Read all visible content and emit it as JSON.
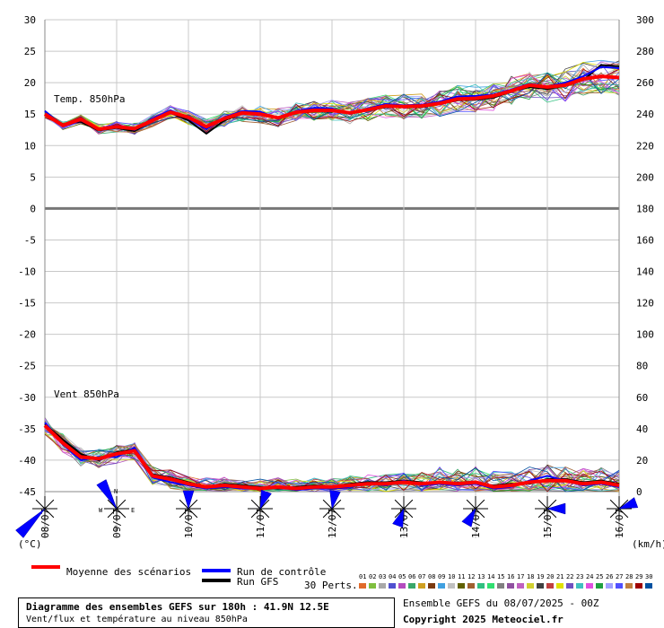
{
  "chart_data": {
    "type": "line",
    "title": "Diagramme des ensembles GEFS sur 180h : 41.9N 12.5E",
    "subtitle": "Vent/flux et température au niveau 850hPa",
    "temp_label": "Temp. 850hPa",
    "wind_label": "Vent 850hPa",
    "left_axis_unit": "(°C)",
    "right_axis_unit": "(km/h)",
    "left_ticks": [
      "30",
      "25",
      "20",
      "15",
      "10",
      "5",
      "0",
      "-5",
      "-10",
      "-15",
      "-20",
      "-25",
      "-30",
      "-35",
      "-40",
      "-45"
    ],
    "right_ticks": [
      "300",
      "280",
      "260",
      "240",
      "220",
      "200",
      "180",
      "160",
      "140",
      "120",
      "100",
      "80",
      "60",
      "40",
      "20",
      "0"
    ],
    "x_labels": [
      "08/07",
      "09/07",
      "10/07",
      "11/07",
      "12/07",
      "13/07",
      "14/07",
      "15/07",
      "16/07"
    ],
    "temp_range": [
      -45,
      30
    ],
    "x_range_h": [
      0,
      192
    ],
    "temp_mean": [
      [
        0,
        15
      ],
      [
        6,
        13.2
      ],
      [
        12,
        14.2
      ],
      [
        18,
        12.6
      ],
      [
        24,
        13
      ],
      [
        30,
        12.7
      ],
      [
        36,
        14
      ],
      [
        42,
        15.3
      ],
      [
        48,
        14.5
      ],
      [
        54,
        13
      ],
      [
        60,
        14.3
      ],
      [
        66,
        15.2
      ],
      [
        72,
        15
      ],
      [
        78,
        14.4
      ],
      [
        84,
        15.3
      ],
      [
        90,
        15.6
      ],
      [
        96,
        15.6
      ],
      [
        102,
        15.2
      ],
      [
        108,
        15.7
      ],
      [
        114,
        16.3
      ],
      [
        120,
        16.2
      ],
      [
        126,
        16.3
      ],
      [
        132,
        16.7
      ],
      [
        138,
        17.4
      ],
      [
        144,
        17.5
      ],
      [
        150,
        17.9
      ],
      [
        156,
        18.7
      ],
      [
        162,
        19.6
      ],
      [
        168,
        19.3
      ],
      [
        174,
        19.6
      ],
      [
        180,
        20.6
      ],
      [
        186,
        21
      ],
      [
        192,
        20.8
      ]
    ],
    "temp_control": [
      [
        0,
        15.5
      ],
      [
        6,
        13
      ],
      [
        12,
        14
      ],
      [
        18,
        12.7
      ],
      [
        24,
        13.2
      ],
      [
        30,
        12.5
      ],
      [
        36,
        14.3
      ],
      [
        42,
        15.6
      ],
      [
        48,
        14.3
      ],
      [
        54,
        12.6
      ],
      [
        60,
        14.5
      ],
      [
        66,
        15.5
      ],
      [
        72,
        15.4
      ],
      [
        78,
        14.2
      ],
      [
        84,
        15.5
      ],
      [
        90,
        16
      ],
      [
        96,
        15.9
      ],
      [
        102,
        15
      ],
      [
        108,
        15.9
      ],
      [
        114,
        16.6
      ],
      [
        120,
        16.4
      ],
      [
        126,
        16.5
      ],
      [
        132,
        17
      ],
      [
        138,
        17.8
      ],
      [
        144,
        17.9
      ],
      [
        150,
        18.1
      ],
      [
        156,
        18.9
      ],
      [
        162,
        19.8
      ],
      [
        168,
        19.4
      ],
      [
        174,
        20
      ],
      [
        180,
        21
      ],
      [
        186,
        22.5
      ],
      [
        192,
        22.3
      ]
    ],
    "temp_gfs": [
      [
        0,
        15
      ],
      [
        6,
        13.4
      ],
      [
        12,
        13.8
      ],
      [
        18,
        12.4
      ],
      [
        24,
        12.8
      ],
      [
        30,
        12.3
      ],
      [
        36,
        14.1
      ],
      [
        42,
        15.2
      ],
      [
        48,
        14
      ],
      [
        54,
        11.9
      ],
      [
        60,
        14
      ],
      [
        66,
        15.1
      ],
      [
        72,
        15.1
      ],
      [
        78,
        14.3
      ],
      [
        84,
        15.2
      ],
      [
        90,
        15.4
      ],
      [
        96,
        15.4
      ],
      [
        102,
        15.3
      ],
      [
        108,
        15.6
      ],
      [
        114,
        16.1
      ],
      [
        120,
        16.1
      ],
      [
        126,
        16.1
      ],
      [
        132,
        16.6
      ],
      [
        138,
        17.2
      ],
      [
        144,
        17.3
      ],
      [
        150,
        17.6
      ],
      [
        156,
        18.6
      ],
      [
        162,
        19.3
      ],
      [
        168,
        19
      ],
      [
        174,
        19.5
      ],
      [
        180,
        20.4
      ],
      [
        186,
        22.8
      ],
      [
        192,
        22.6
      ]
    ],
    "wind_mean_kmh": [
      [
        0,
        42
      ],
      [
        6,
        31
      ],
      [
        12,
        22
      ],
      [
        18,
        21
      ],
      [
        24,
        24
      ],
      [
        30,
        26
      ],
      [
        36,
        10
      ],
      [
        42,
        8
      ],
      [
        48,
        5
      ],
      [
        54,
        3
      ],
      [
        60,
        4
      ],
      [
        66,
        3
      ],
      [
        72,
        2
      ],
      [
        78,
        3
      ],
      [
        84,
        2
      ],
      [
        90,
        3
      ],
      [
        96,
        3
      ],
      [
        102,
        4
      ],
      [
        108,
        5
      ],
      [
        114,
        5
      ],
      [
        120,
        6
      ],
      [
        126,
        5
      ],
      [
        132,
        6
      ],
      [
        138,
        5
      ],
      [
        144,
        6
      ],
      [
        150,
        3
      ],
      [
        156,
        4
      ],
      [
        162,
        6
      ],
      [
        168,
        7
      ],
      [
        174,
        7
      ],
      [
        180,
        5
      ],
      [
        186,
        6
      ],
      [
        192,
        4
      ]
    ],
    "wind_control_kmh": [
      [
        0,
        44
      ],
      [
        6,
        30
      ],
      [
        12,
        20
      ],
      [
        18,
        22
      ],
      [
        24,
        22
      ],
      [
        30,
        28
      ],
      [
        36,
        9
      ],
      [
        42,
        6
      ],
      [
        48,
        4
      ],
      [
        54,
        2
      ],
      [
        60,
        3
      ],
      [
        66,
        2
      ],
      [
        72,
        2
      ],
      [
        78,
        3
      ],
      [
        84,
        1
      ],
      [
        90,
        2
      ],
      [
        96,
        2
      ],
      [
        102,
        3
      ],
      [
        108,
        5
      ],
      [
        114,
        4
      ],
      [
        120,
        7
      ],
      [
        126,
        4
      ],
      [
        132,
        5
      ],
      [
        138,
        4
      ],
      [
        144,
        5
      ],
      [
        150,
        2
      ],
      [
        156,
        3
      ],
      [
        162,
        7
      ],
      [
        168,
        10
      ],
      [
        174,
        7
      ],
      [
        180,
        4
      ],
      [
        186,
        5
      ],
      [
        192,
        3
      ]
    ],
    "wind_gfs_kmh": [
      [
        0,
        43
      ],
      [
        6,
        33
      ],
      [
        12,
        24
      ],
      [
        18,
        20
      ],
      [
        24,
        25
      ],
      [
        30,
        27
      ],
      [
        36,
        11
      ],
      [
        42,
        9
      ],
      [
        48,
        6
      ],
      [
        54,
        3
      ],
      [
        60,
        5
      ],
      [
        66,
        4
      ],
      [
        72,
        3
      ],
      [
        78,
        2
      ],
      [
        84,
        3
      ],
      [
        90,
        4
      ],
      [
        96,
        3
      ],
      [
        102,
        5
      ],
      [
        108,
        6
      ],
      [
        114,
        6
      ],
      [
        120,
        7
      ],
      [
        126,
        6
      ],
      [
        132,
        5
      ],
      [
        138,
        6
      ],
      [
        144,
        5
      ],
      [
        150,
        4
      ],
      [
        156,
        5
      ],
      [
        162,
        5
      ],
      [
        168,
        8
      ],
      [
        174,
        8
      ],
      [
        180,
        6
      ],
      [
        186,
        7
      ],
      [
        192,
        5
      ]
    ],
    "perturbations": 30,
    "grid": true
  },
  "legend": {
    "mean_label": "Moyenne des scénarios",
    "control_label": "Run de contrôle",
    "gfs_label": "Run GFS",
    "perts_label": "30 Perts.",
    "pert_numbers": [
      "01",
      "02",
      "03",
      "04",
      "05",
      "06",
      "07",
      "08",
      "09",
      "10",
      "11",
      "12",
      "13",
      "14",
      "15",
      "16",
      "17",
      "18",
      "19",
      "20",
      "21",
      "22",
      "23",
      "24",
      "25",
      "26",
      "27",
      "28",
      "29",
      "30"
    ],
    "pert_colors": [
      "#e06a2a",
      "#7fbf3f",
      "#a8a8a8",
      "#5050d0",
      "#b44cbf",
      "#3aa76a",
      "#d0a020",
      "#7a3a10",
      "#40a0e0",
      "#c0c0c0",
      "#606000",
      "#a06030",
      "#30c080",
      "#30e070",
      "#808080",
      "#9050a0",
      "#c060c0",
      "#d0d030",
      "#404040",
      "#c04040",
      "#e0e000",
      "#7050c0",
      "#40c0c0",
      "#e050e0",
      "#20a040",
      "#a0a0ff",
      "#5050ff",
      "#c08040",
      "#a00000",
      "#0050a0"
    ],
    "mean_color": "#ff0000",
    "control_color": "#0000ff",
    "gfs_color": "#000000"
  },
  "info": {
    "run": "Ensemble GEFS du 08/07/2025 - 00Z",
    "copyright": "Copyright 2025 Meteociel.fr"
  }
}
